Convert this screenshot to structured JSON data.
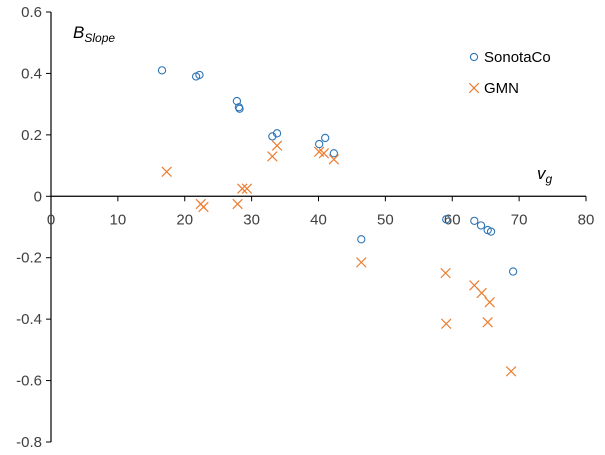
{
  "chart_data": {
    "type": "scatter",
    "title": "",
    "xlabel": {
      "main": "v",
      "sub": "g"
    },
    "ylabel": {
      "main": "B",
      "sub": "Slope"
    },
    "xlim": [
      0,
      80
    ],
    "ylim": [
      -0.8,
      0.6
    ],
    "xticks": [
      "0",
      "10",
      "20",
      "30",
      "40",
      "50",
      "60",
      "70",
      "80"
    ],
    "yticks": [
      "0.6",
      "0.4",
      "0.2",
      "0",
      "-0.2",
      "-0.4",
      "-0.6",
      "-0.8"
    ],
    "xtick_values": [
      0,
      10,
      20,
      30,
      40,
      50,
      60,
      70,
      80
    ],
    "ytick_values": [
      0.6,
      0.4,
      0.2,
      0,
      -0.2,
      -0.4,
      -0.6,
      -0.8
    ],
    "grid": false,
    "legend_position": "top-right",
    "series": [
      {
        "name": "SonotaCo",
        "marker": "circle",
        "color": "#2E75B6",
        "points": [
          [
            16.6,
            0.41
          ],
          [
            21.7,
            0.39
          ],
          [
            22.2,
            0.395
          ],
          [
            27.8,
            0.31
          ],
          [
            28.1,
            0.29
          ],
          [
            28.2,
            0.285
          ],
          [
            33.1,
            0.195
          ],
          [
            33.8,
            0.205
          ],
          [
            40.1,
            0.17
          ],
          [
            41.0,
            0.19
          ],
          [
            42.3,
            0.14
          ],
          [
            46.4,
            -0.14
          ],
          [
            59.1,
            -0.075
          ],
          [
            63.3,
            -0.08
          ],
          [
            64.3,
            -0.095
          ],
          [
            65.3,
            -0.11
          ],
          [
            65.8,
            -0.115
          ],
          [
            69.1,
            -0.245
          ]
        ]
      },
      {
        "name": "GMN",
        "marker": "x",
        "color": "#ED7D31",
        "points": [
          [
            17.3,
            0.08
          ],
          [
            22.4,
            -0.025
          ],
          [
            22.8,
            -0.035
          ],
          [
            27.9,
            -0.025
          ],
          [
            28.6,
            0.025
          ],
          [
            29.3,
            0.025
          ],
          [
            33.1,
            0.13
          ],
          [
            33.8,
            0.165
          ],
          [
            40.1,
            0.145
          ],
          [
            40.8,
            0.14
          ],
          [
            42.3,
            0.12
          ],
          [
            46.4,
            -0.215
          ],
          [
            59.0,
            -0.25
          ],
          [
            59.1,
            -0.415
          ],
          [
            63.3,
            -0.29
          ],
          [
            64.4,
            -0.315
          ],
          [
            65.3,
            -0.41
          ],
          [
            65.6,
            -0.345
          ],
          [
            68.8,
            -0.57
          ]
        ]
      }
    ]
  }
}
